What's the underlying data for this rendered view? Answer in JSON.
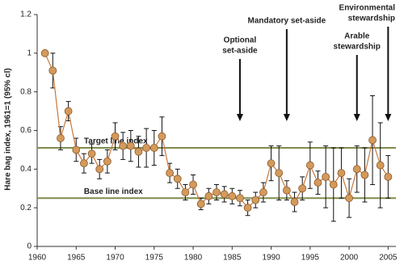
{
  "chart_data": {
    "type": "line",
    "ylabel": "Hare bag index, 1961=1 (95% cl)",
    "x": [
      1961,
      1962,
      1963,
      1964,
      1965,
      1966,
      1967,
      1968,
      1969,
      1970,
      1971,
      1972,
      1973,
      1974,
      1975,
      1976,
      1977,
      1978,
      1979,
      1980,
      1981,
      1982,
      1983,
      1984,
      1985,
      1986,
      1987,
      1988,
      1989,
      1990,
      1991,
      1992,
      1993,
      1994,
      1995,
      1996,
      1997,
      1998,
      1999,
      2000,
      2001,
      2002,
      2003,
      2004,
      2005
    ],
    "series": [
      {
        "color": "#d49a5c",
        "line_color": "#c8783a",
        "values": [
          1.0,
          0.91,
          0.56,
          0.7,
          0.5,
          0.43,
          0.48,
          0.4,
          0.44,
          0.57,
          0.52,
          0.52,
          0.49,
          0.51,
          0.51,
          0.57,
          0.38,
          0.35,
          0.28,
          0.32,
          0.22,
          0.26,
          0.28,
          0.27,
          0.26,
          0.25,
          0.2,
          0.24,
          0.28,
          0.43,
          0.38,
          0.29,
          0.23,
          0.3,
          0.42,
          0.33,
          0.36,
          0.32,
          0.38,
          0.25,
          0.4,
          0.37,
          0.55,
          0.42,
          0.36
        ],
        "errors": [
          0,
          0.09,
          0.06,
          0.05,
          0.06,
          0.05,
          0.05,
          0.05,
          0.06,
          0.07,
          0.07,
          0.08,
          0.08,
          0.1,
          0.09,
          0.1,
          0.05,
          0.05,
          0.04,
          0.05,
          0.03,
          0.04,
          0.04,
          0.04,
          0.04,
          0.04,
          0.04,
          0.04,
          0.05,
          0.09,
          0.14,
          0.05,
          0.05,
          0.06,
          0.12,
          0.06,
          0.16,
          0.19,
          0.13,
          0.1,
          0.12,
          0.14,
          0.23,
          0.22,
          0.11
        ]
      }
    ],
    "reference_lines": [
      {
        "value": 0.51,
        "label": "Target line index",
        "color": "#7f8c4d"
      },
      {
        "value": 0.25,
        "label": "Base line index",
        "color": "#7f8c4d"
      }
    ],
    "annotations": [
      {
        "lines": [
          "Optional",
          "set-aside"
        ],
        "x": 1986
      },
      {
        "lines": [
          "Mandatory set-aside"
        ],
        "x": 1992
      },
      {
        "lines": [
          "Arable",
          "stewardship"
        ],
        "x": 2001
      },
      {
        "lines": [
          "Environmental",
          "stewardship"
        ],
        "x": 2005
      }
    ],
    "xlim": [
      1960,
      2006
    ],
    "xticks": [
      1960,
      1965,
      1970,
      1975,
      1980,
      1985,
      1990,
      1995,
      2000,
      2005
    ],
    "ylim": [
      0,
      1.2
    ],
    "yticks": [
      0,
      0.2,
      0.4,
      0.6,
      0.8,
      1,
      1.2
    ]
  }
}
